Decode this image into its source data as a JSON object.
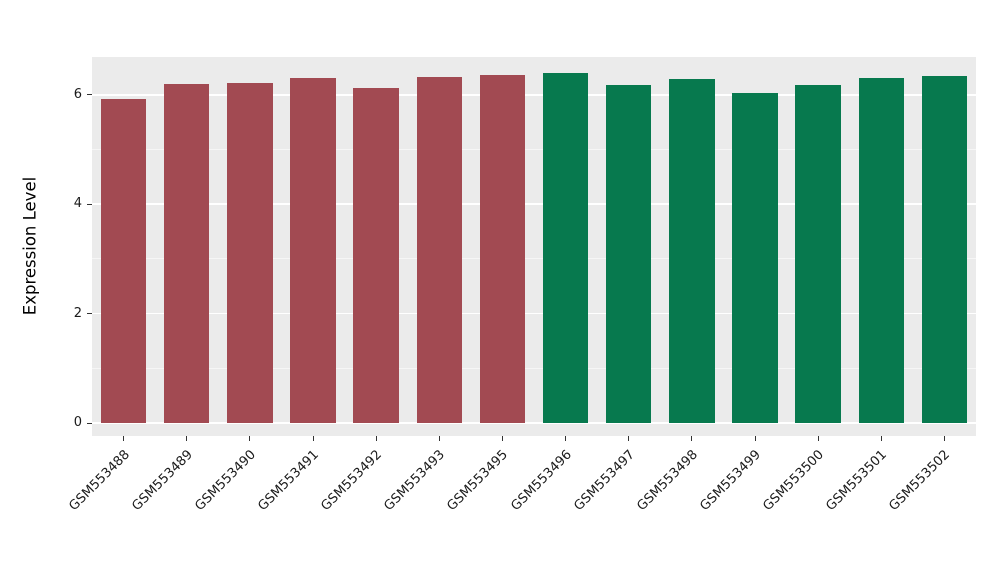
{
  "chart_data": {
    "type": "bar",
    "title": "",
    "xlabel": "",
    "ylabel": "Expression Level",
    "categories": [
      "GSM553488",
      "GSM553489",
      "GSM553490",
      "GSM553491",
      "GSM553492",
      "GSM553493",
      "GSM553495",
      "GSM553496",
      "GSM553497",
      "GSM553498",
      "GSM553499",
      "GSM553500",
      "GSM553501",
      "GSM553502"
    ],
    "values": [
      5.93,
      6.2,
      6.22,
      6.3,
      6.12,
      6.32,
      6.36,
      6.4,
      6.17,
      6.28,
      6.03,
      6.17,
      6.3,
      6.34
    ],
    "bar_colors": [
      "#A24A52",
      "#A24A52",
      "#A24A52",
      "#A24A52",
      "#A24A52",
      "#A24A52",
      "#A24A52",
      "#07794E",
      "#07794E",
      "#07794E",
      "#07794E",
      "#07794E",
      "#07794E",
      "#07794E"
    ],
    "group_colors": {
      "left_group": "#A24A52",
      "right_group": "#07794E"
    },
    "yticks": [
      0,
      2,
      4,
      6
    ],
    "yticks_minor": [
      1,
      3,
      5
    ],
    "ylim": [
      0,
      6.7
    ],
    "grid": true,
    "legend": "none",
    "panel_background": "#EBEBEB",
    "grid_color": "#FFFFFF",
    "tick_color": "#333333",
    "text_color": "#1A1A1A"
  }
}
